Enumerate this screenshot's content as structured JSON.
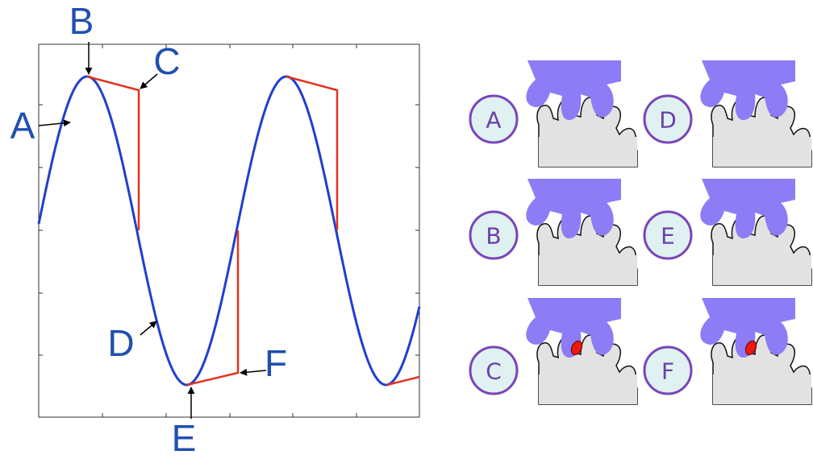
{
  "plot": {
    "labels": [
      "A",
      "B",
      "C",
      "D",
      "E",
      "F"
    ]
  },
  "panels": [
    {
      "label": "A"
    },
    {
      "label": "D"
    },
    {
      "label": "B"
    },
    {
      "label": "E"
    },
    {
      "label": "C"
    },
    {
      "label": "F"
    }
  ]
}
